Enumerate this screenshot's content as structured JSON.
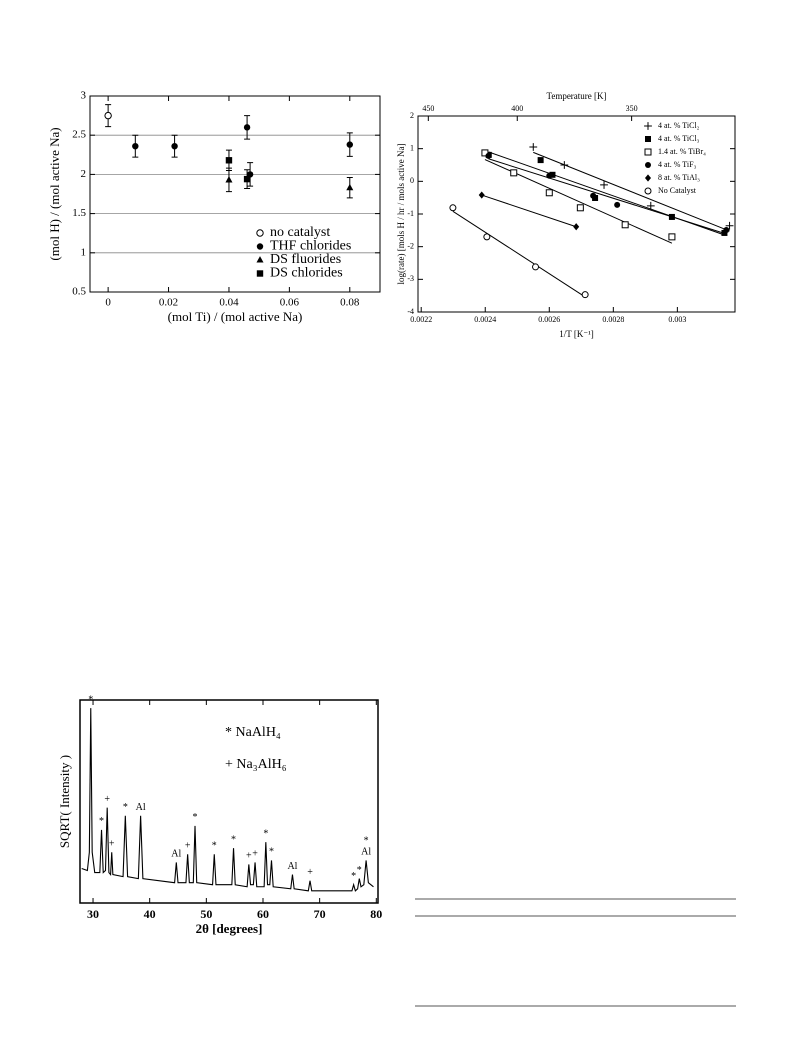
{
  "chart_data": [
    {
      "type": "errorbar",
      "xlabel": "(mol Ti) / (mol active Na)",
      "ylabel": "(mol H) / (mol active Na)",
      "xlim": [
        -0.006,
        0.09
      ],
      "ylim": [
        0.5,
        3
      ],
      "xticks": [
        0,
        0.02,
        0.04,
        0.06,
        0.08
      ],
      "yticks": [
        0.5,
        1,
        1.5,
        2,
        2.5,
        3
      ],
      "grid": true,
      "legend": "lower right",
      "series": [
        {
          "name": "no catalyst",
          "marker": "circle-open",
          "x": [
            0
          ],
          "values": [
            2.75
          ],
          "errors": [
            0.14
          ]
        },
        {
          "name": "THF chlorides",
          "marker": "circle",
          "x": [
            0.009,
            0.022,
            0.046,
            0.047,
            0.08
          ],
          "values": [
            2.36,
            2.36,
            2.6,
            2.0,
            2.38
          ],
          "errors": [
            0.14,
            0.14,
            0.15,
            0.15,
            0.15
          ]
        },
        {
          "name": "DS fluorides",
          "marker": "triangle",
          "x": [
            0.04,
            0.08
          ],
          "values": [
            1.93,
            1.83
          ],
          "errors": [
            0.15,
            0.13
          ]
        },
        {
          "name": "DS chlorides",
          "marker": "square",
          "x": [
            0.04,
            0.046
          ],
          "values": [
            2.18,
            1.94
          ],
          "errors": [
            0.13,
            0.12
          ]
        }
      ]
    },
    {
      "type": "scatter",
      "xlabel": "1/T [K⁻¹]",
      "ylabel": "log(rate) [mols H / hr / mols active Na]",
      "x2label": "Temperature [K]",
      "x2_scale": "reciprocal",
      "x2ticks": [
        450,
        400,
        350
      ],
      "xlim": [
        0.00219,
        0.00318
      ],
      "ylim": [
        -4,
        2
      ],
      "xticks": [
        0.0022,
        0.0024,
        0.0026,
        0.0028,
        0.003
      ],
      "yticks": [
        -4,
        -3,
        -2,
        -1,
        0,
        1,
        2
      ],
      "fit_lines": true,
      "legend": "upper right",
      "series": [
        {
          "name": "4 at. % TiCl₂",
          "marker": "plus",
          "x": [
            0.00255,
            0.002647,
            0.002771,
            0.002917,
            0.003163
          ],
          "values": [
            1.05,
            0.5,
            -0.11,
            -0.75,
            -1.36
          ]
        },
        {
          "name": "4 at. % TiCl₃",
          "marker": "square",
          "x": [
            0.002411,
            0.002573,
            0.00261,
            0.002743,
            0.002983,
            0.003147
          ],
          "values": [
            0.81,
            0.65,
            0.2,
            -0.51,
            -1.09,
            -1.58
          ]
        },
        {
          "name": "1.4 at. % TiBr₄",
          "marker": "square-open",
          "x": [
            0.002399,
            0.002489,
            0.0026,
            0.002697,
            0.002837,
            0.002983
          ],
          "values": [
            0.87,
            0.26,
            -0.35,
            -0.81,
            -1.33,
            -1.7
          ]
        },
        {
          "name": "4 at. % TiF₃",
          "marker": "circle",
          "x": [
            0.00241,
            0.0026,
            0.002737,
            0.002812,
            0.003153
          ],
          "values": [
            0.78,
            0.17,
            -0.44,
            -0.72,
            -1.49
          ]
        },
        {
          "name": "8 at. % TiAl₃",
          "marker": "diamond",
          "x": [
            0.002389,
            0.002684
          ],
          "values": [
            -0.42,
            -1.39
          ]
        },
        {
          "name": "No Catalyst",
          "marker": "circle-open",
          "x": [
            0.002299,
            0.002405,
            0.002557,
            0.002712
          ],
          "values": [
            -0.81,
            -1.7,
            -2.62,
            -3.47
          ]
        }
      ]
    },
    {
      "type": "line",
      "xlabel": "2θ [degrees]",
      "ylabel": "SQRT( Intensity )",
      "xlim": [
        27.7,
        80.3
      ],
      "ylim": [
        0,
        100
      ],
      "xticks": [
        30,
        40,
        50,
        60,
        70,
        80
      ],
      "legend": [
        "* NaAlH₄",
        "+ Na₃AlH₆"
      ],
      "x": [
        28,
        29.0,
        29.35,
        29.6,
        29.85,
        30.3,
        31.2,
        31.5,
        31.8,
        32.2,
        32.5,
        32.8,
        33.1,
        33.3,
        33.5,
        35.3,
        35.7,
        36.1,
        38.0,
        38.4,
        38.8,
        44.4,
        44.7,
        45.0,
        46.4,
        46.7,
        47.0,
        47.7,
        48.0,
        48.3,
        51.1,
        51.4,
        51.7,
        54.5,
        54.8,
        55.1,
        57.2,
        57.5,
        57.8,
        58.3,
        58.6,
        58.9,
        60.2,
        60.5,
        60.8,
        61.2,
        61.5,
        61.8,
        64.9,
        65.2,
        65.5,
        68.0,
        68.3,
        68.6,
        75.7,
        76.0,
        76.3,
        76.7,
        77.0,
        77.3,
        77.8,
        78.2,
        78.6,
        79.5
      ],
      "values": [
        17,
        16,
        25,
        96,
        25,
        15,
        15,
        36,
        15,
        16,
        47,
        15,
        14,
        25,
        14,
        13,
        43,
        13,
        12,
        43,
        12,
        10,
        20,
        10,
        10,
        24,
        10,
        10,
        38,
        10,
        9,
        24,
        9,
        9,
        27,
        9,
        8,
        19,
        9,
        9,
        20,
        8,
        8,
        30,
        9,
        9,
        21,
        8,
        7,
        14,
        7,
        6,
        11,
        6,
        6,
        9,
        6,
        7,
        12,
        8,
        9,
        21,
        10,
        8
      ],
      "peak_labels": [
        {
          "x": 29.6,
          "y": 96,
          "label": "*"
        },
        {
          "x": 31.5,
          "y": 36,
          "label": "*"
        },
        {
          "x": 32.5,
          "y": 47,
          "label": "+"
        },
        {
          "x": 33.3,
          "y": 25,
          "label": "+"
        },
        {
          "x": 35.7,
          "y": 43,
          "label": "*"
        },
        {
          "x": 38.4,
          "y": 43,
          "label": "Al"
        },
        {
          "x": 44.7,
          "y": 20,
          "label": "Al"
        },
        {
          "x": 46.7,
          "y": 24,
          "label": "+"
        },
        {
          "x": 48.0,
          "y": 38,
          "label": "*"
        },
        {
          "x": 51.4,
          "y": 24,
          "label": "*"
        },
        {
          "x": 54.8,
          "y": 27,
          "label": "*"
        },
        {
          "x": 57.5,
          "y": 19,
          "label": "+"
        },
        {
          "x": 58.6,
          "y": 20,
          "label": "+"
        },
        {
          "x": 60.5,
          "y": 30,
          "label": "*"
        },
        {
          "x": 61.5,
          "y": 21,
          "label": "*"
        },
        {
          "x": 65.2,
          "y": 14,
          "label": "Al"
        },
        {
          "x": 68.3,
          "y": 11,
          "label": "+"
        },
        {
          "x": 76.0,
          "y": 9,
          "label": "*"
        },
        {
          "x": 77.0,
          "y": 12,
          "label": "*"
        },
        {
          "x": 78.2,
          "y": 21,
          "label": "Al"
        },
        {
          "x": 78.2,
          "y": 21,
          "label": "*"
        }
      ]
    }
  ]
}
